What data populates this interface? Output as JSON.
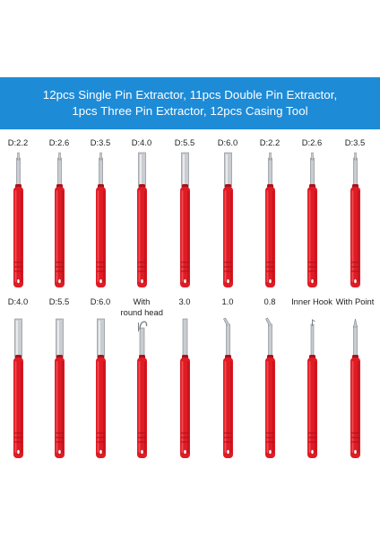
{
  "banner": {
    "line1": "12pcs Single Pin Extractor, 11pcs Double Pin Extractor,",
    "line2": "1pcs Three Pin Extractor, 12pcs Casing Tool",
    "color": "#1e8bd7"
  },
  "colors": {
    "handle": "#e01b24",
    "handle_dark": "#a8121a",
    "handle_light": "#f2585c",
    "metal": "#c9ccd0",
    "metal_dark": "#7d8288",
    "label_text": "#222222"
  },
  "row1": [
    {
      "label": "D:2.2",
      "tip": "pin"
    },
    {
      "label": "D:2.6",
      "tip": "pin"
    },
    {
      "label": "D:3.5",
      "tip": "pin"
    },
    {
      "label": "D:4.0",
      "tip": "tube"
    },
    {
      "label": "D:5.5",
      "tip": "tube"
    },
    {
      "label": "D:6.0",
      "tip": "tube"
    },
    {
      "label": "D:2.2",
      "tip": "pin"
    },
    {
      "label": "D:2.6",
      "tip": "pin"
    },
    {
      "label": "D:3.5",
      "tip": "pin"
    }
  ],
  "row2": [
    {
      "label": "D:4.0",
      "label2": "",
      "tip": "tube"
    },
    {
      "label": "D:5.5",
      "label2": "",
      "tip": "tube"
    },
    {
      "label": "D:6.0",
      "label2": "",
      "tip": "tube"
    },
    {
      "label": "With",
      "label2": "round head",
      "tip": "roundhead"
    },
    {
      "label": "3.0",
      "label2": "",
      "tip": "flat"
    },
    {
      "label": "1.0",
      "label2": "",
      "tip": "hook"
    },
    {
      "label": "0.8",
      "label2": "",
      "tip": "hook"
    },
    {
      "label": "Inner Hook",
      "label2": "",
      "tip": "innerhook"
    },
    {
      "label": "With Point",
      "label2": "",
      "tip": "point"
    }
  ]
}
